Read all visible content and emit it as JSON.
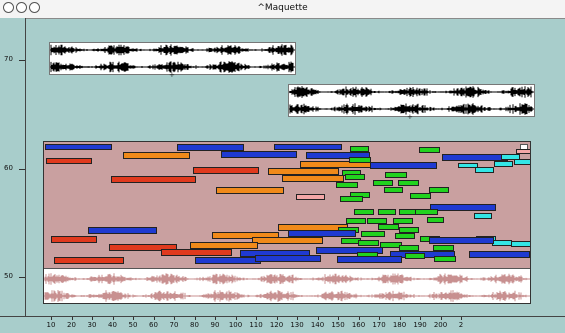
{
  "window": {
    "title": "^Maquette"
  },
  "ruler_y": {
    "labels": [
      "70",
      "60",
      "50"
    ]
  },
  "ruler_x": {
    "labels": [
      "10",
      "20",
      "30",
      "40",
      "50",
      "60",
      "70",
      "80",
      "90",
      "100",
      "110",
      "120",
      "130",
      "140",
      "150",
      "160",
      "170",
      "180",
      "190",
      "200",
      "2"
    ]
  },
  "colors": {
    "background": "#a8cdcb",
    "maquette_bg": "#c9a0a0",
    "blue": "#1f3ad1",
    "orange": "#f08a1a",
    "red": "#e03a1e",
    "green": "#22d21e",
    "cyan": "#33e6e6",
    "pink": "#f3a7a7"
  },
  "icons": [
    "close-button-icon",
    "minimize-button-icon",
    "zoom-button-icon"
  ]
}
